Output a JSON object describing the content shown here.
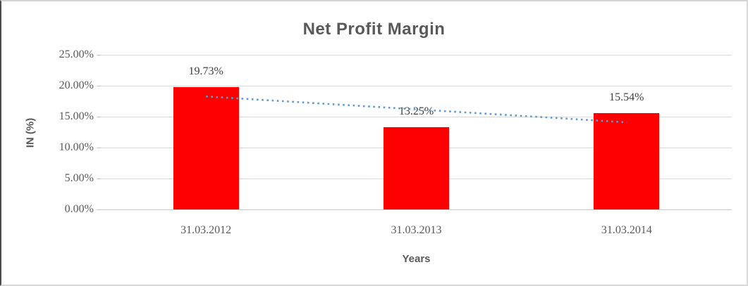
{
  "chart_data": {
    "type": "bar",
    "title": "Net Profit Margin",
    "xlabel": "Years",
    "ylabel": "IN (%)",
    "categories": [
      "31.03.2012",
      "31.03.2013",
      "31.03.2014"
    ],
    "values": [
      19.73,
      13.25,
      15.54
    ],
    "data_labels": [
      "19.73%",
      "13.25%",
      "15.54%"
    ],
    "ylim": [
      0,
      25
    ],
    "ytick_step": 5,
    "ytick_labels": [
      "0.00%",
      "5.00%",
      "10.00%",
      "15.00%",
      "20.00%",
      "25.00%"
    ],
    "grid": "horizontal",
    "legend": "none",
    "trendline": {
      "type": "linear",
      "style": "dotted",
      "start_value": 18.27,
      "end_value": 14.08
    },
    "colors": {
      "bar": "#FF0000",
      "trendline": "#5B9BD5",
      "gridline": "#D9D9D9",
      "axis_line": "#C6C6C6",
      "title": "#595959",
      "axis_title": "#595959",
      "tick_label": "#595959",
      "data_label": "#404040"
    }
  }
}
